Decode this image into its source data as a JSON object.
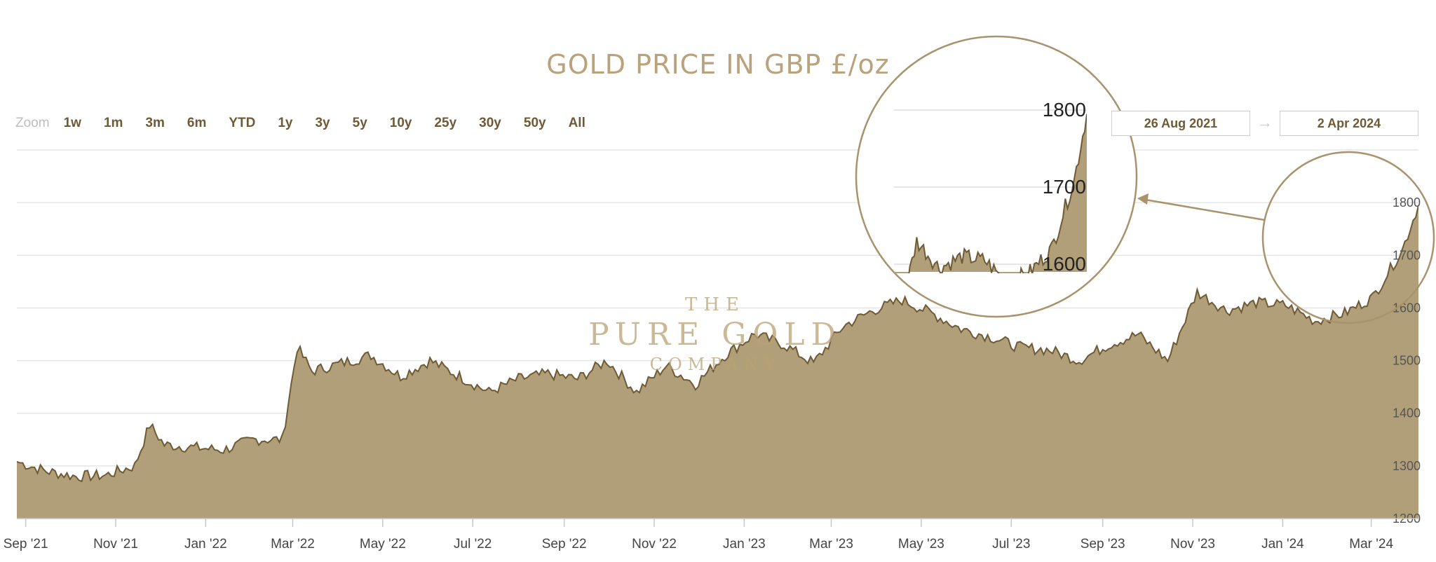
{
  "chart_data": {
    "type": "area",
    "title": "GOLD PRICE IN GBP £/oz",
    "y_ticks": [
      "1200",
      "1300",
      "1400",
      "1500",
      "1600",
      "1700",
      "1800"
    ],
    "ylim": [
      1200,
      1900
    ],
    "y_axis_side": "right",
    "x_ticks": [
      "Sep '21",
      "Nov '21",
      "Jan '22",
      "Mar '22",
      "May '22",
      "Jul '22",
      "Sep '22",
      "Nov '22",
      "Jan '23",
      "Mar '23",
      "May '23",
      "Jul '23",
      "Sep '23",
      "Nov '23",
      "Jan '24",
      "Mar '24"
    ],
    "grid": true,
    "x": [
      "2021-08-26",
      "2021-09-15",
      "2021-10-05",
      "2021-10-25",
      "2021-11-14",
      "2021-11-24",
      "2021-12-04",
      "2021-12-24",
      "2022-01-13",
      "2022-02-02",
      "2022-02-22",
      "2022-03-04",
      "2022-03-14",
      "2022-04-03",
      "2022-04-23",
      "2022-05-13",
      "2022-06-02",
      "2022-06-22",
      "2022-07-12",
      "2022-08-01",
      "2022-08-21",
      "2022-09-10",
      "2022-09-30",
      "2022-10-20",
      "2022-11-09",
      "2022-11-29",
      "2022-12-19",
      "2023-01-08",
      "2023-01-28",
      "2023-02-17",
      "2023-03-09",
      "2023-03-29",
      "2023-04-18",
      "2023-05-08",
      "2023-05-28",
      "2023-06-17",
      "2023-07-07",
      "2023-07-27",
      "2023-08-16",
      "2023-09-05",
      "2023-09-25",
      "2023-10-15",
      "2023-11-04",
      "2023-11-24",
      "2023-12-14",
      "2024-01-03",
      "2024-01-23",
      "2024-02-12",
      "2024-03-02",
      "2024-03-22",
      "2024-04-02"
    ],
    "series": [
      {
        "values": [
          1308,
          1290,
          1280,
          1282,
          1300,
          1378,
          1340,
          1335,
          1330,
          1350,
          1350,
          1525,
          1480,
          1495,
          1510,
          1470,
          1500,
          1470,
          1440,
          1465,
          1475,
          1465,
          1500,
          1440,
          1490,
          1455,
          1510,
          1550,
          1530,
          1495,
          1565,
          1595,
          1615,
          1590,
          1560,
          1545,
          1525,
          1520,
          1500,
          1530,
          1550,
          1500,
          1630,
          1595,
          1610,
          1605,
          1575,
          1590,
          1620,
          1710,
          1795
        ]
      }
    ],
    "inset": {
      "y_ticks": [
        "1800",
        "1700",
        "1600"
      ]
    }
  },
  "zoom": {
    "label": "Zoom",
    "buttons": [
      "1w",
      "1m",
      "3m",
      "6m",
      "YTD",
      "1y",
      "3y",
      "5y",
      "10y",
      "25y",
      "30y",
      "50y",
      "All"
    ]
  },
  "range": {
    "from": "26 Aug 2021",
    "arrow": "→",
    "to": "2 Apr 2024"
  },
  "watermark": {
    "line1": "THE",
    "line2": "PURE GOLD",
    "line3": "COMPANY"
  },
  "colors": {
    "area_fill": "#b09f79",
    "line": "#6e5a35",
    "grid": "#e6e6e6",
    "title": "#b9a27c",
    "circle": "#a8936d",
    "accent": "#6e5a35"
  }
}
